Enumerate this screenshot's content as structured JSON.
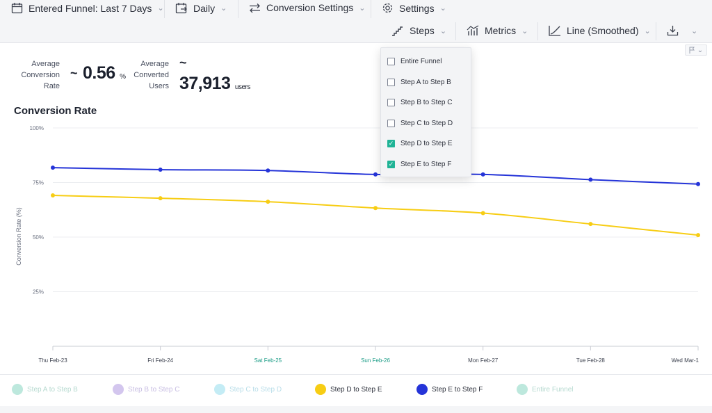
{
  "toolbar": {
    "funnel_range": "Entered Funnel: Last 7 Days",
    "interval": "Daily",
    "conversion_settings": "Conversion Settings",
    "settings": "Settings",
    "steps": "Steps",
    "metrics": "Metrics",
    "chart_type": "Line (Smoothed)"
  },
  "stats": {
    "avg_rate_label": [
      "Average",
      "Conversion",
      "Rate"
    ],
    "avg_rate_prefix": "~",
    "avg_rate_value": "0.56",
    "avg_rate_unit": "%",
    "avg_users_label": [
      "Average",
      "Converted",
      "Users"
    ],
    "avg_users_prefix": "~",
    "avg_users_value": "37,913",
    "avg_users_unit": "users"
  },
  "steps_dropdown": {
    "items": [
      {
        "label": "Entire Funnel",
        "checked": false
      },
      {
        "label": "Step A to Step B",
        "checked": false
      },
      {
        "label": "Step B to Step C",
        "checked": false
      },
      {
        "label": "Step C to Step D",
        "checked": false
      },
      {
        "label": "Step D to Step E",
        "checked": true
      },
      {
        "label": "Step E to Step F",
        "checked": true
      }
    ]
  },
  "legend": [
    {
      "label": "Step A to Step B",
      "color": "#bde8dd",
      "active": false
    },
    {
      "label": "Step B to Step C",
      "color": "#d3c6ee",
      "active": false
    },
    {
      "label": "Step C to Step D",
      "color": "#c4ecf5",
      "active": false
    },
    {
      "label": "Step D to Step E",
      "color": "#f7cd14",
      "active": true
    },
    {
      "label": "Step E to Step F",
      "color": "#2534d8",
      "active": true
    },
    {
      "label": "Entire Funnel",
      "color": "#bde8dd",
      "active": false
    }
  ],
  "chart_data": {
    "type": "line",
    "title": "Conversion Rate",
    "ylabel": "Conversion Rate (%)",
    "xlabel": "",
    "ylim": [
      0,
      100
    ],
    "yticks": [
      "25%",
      "50%",
      "75%",
      "100%"
    ],
    "ytick_values": [
      25,
      50,
      75,
      100
    ],
    "categories": [
      "Thu Feb-23",
      "Fri Feb-24",
      "Sat Feb-25",
      "Sun Feb-26",
      "Mon Feb-27",
      "Tue Feb-28",
      "Wed Mar-1"
    ],
    "weekend_color": "#1a9c86",
    "weekend_indices": [
      2,
      3
    ],
    "grid": true,
    "series": [
      {
        "name": "Step E to Step F",
        "color": "#2534d8",
        "values": [
          81.8,
          80.9,
          80.5,
          78.7,
          78.7,
          76.3,
          74.3
        ]
      },
      {
        "name": "Step D to Step E",
        "color": "#f7cd14",
        "values": [
          69.1,
          67.8,
          66.2,
          63.3,
          61.0,
          56.0,
          50.9
        ]
      }
    ]
  },
  "colors": {
    "accent": "#1fb396",
    "series_blue": "#2534d8",
    "series_yellow": "#f7cd14"
  }
}
